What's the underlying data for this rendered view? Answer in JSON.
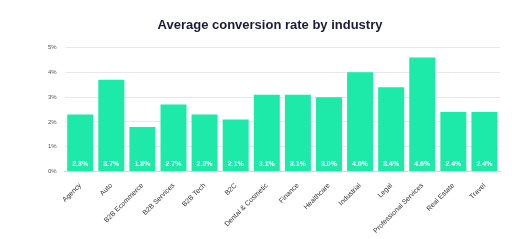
{
  "chart_data": {
    "type": "bar",
    "title": "Average conversion rate by industry",
    "categories": [
      "Agency",
      "Auto",
      "B2B Ecommerce",
      "B2B Services",
      "B2B Tech",
      "B2C",
      "Dental & Cosmetic",
      "Finance",
      "Healthcare",
      "Industrial",
      "Legal",
      "Professional Services",
      "Real Estate",
      "Travel"
    ],
    "values": [
      2.3,
      3.7,
      1.8,
      2.7,
      2.3,
      2.1,
      3.1,
      3.1,
      3.0,
      4.0,
      3.4,
      4.6,
      2.4,
      2.4
    ],
    "value_labels": [
      "2.3%",
      "3.7%",
      "1.8%",
      "2.7%",
      "2.3%",
      "2.1%",
      "3.1%",
      "3.1%",
      "3.0%",
      "4.0%",
      "3.4%",
      "4.6%",
      "2.4%",
      "2.4%"
    ],
    "color": "#1de9a8",
    "ylim": [
      0,
      5
    ],
    "yticks": [
      {
        "value": 0,
        "label": "0%"
      },
      {
        "value": 1,
        "label": "1%"
      },
      {
        "value": 2,
        "label": "2%"
      },
      {
        "value": 3,
        "label": "3%"
      },
      {
        "value": 4,
        "label": "4%"
      },
      {
        "value": 5,
        "label": "5%"
      }
    ],
    "grid": true,
    "data_labels": true
  }
}
